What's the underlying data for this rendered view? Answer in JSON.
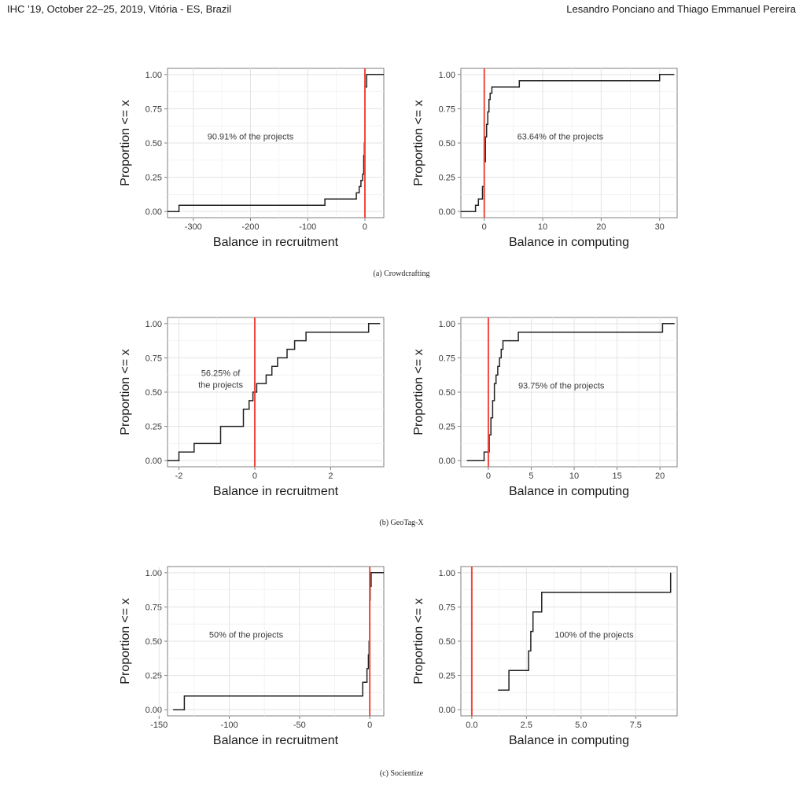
{
  "header": {
    "conference": "IHC ’19, October 22–25, 2019, Vitória - ES, Brazil",
    "authors": "Lesandro Ponciano and Thiago Emmanuel Pereira"
  },
  "captions": [
    "(a) Crowdcrafting",
    "(b) GeoTag-X",
    "(c) Socientize"
  ],
  "chart_data": [
    {
      "type": "line",
      "subfigure": "(a) Crowdcrafting",
      "xlabel": "Balance in recruitment",
      "ylabel": "Proportion <= x",
      "xlim": [
        -345,
        33
      ],
      "ylim": [
        0,
        1
      ],
      "xticks": [
        -300,
        -200,
        -100,
        0
      ],
      "xtick_labels": [
        "-300",
        "-200",
        "-100",
        "0"
      ],
      "yticks": [
        0,
        0.25,
        0.5,
        0.75,
        1
      ],
      "ytick_labels": [
        "0.00",
        "0.25",
        "0.50",
        "0.75",
        "1.00"
      ],
      "reference_line_x": 0,
      "annotation": {
        "lines": [
          "90.91% of the projects"
        ],
        "x": -200,
        "y": 0.55
      },
      "series": [
        {
          "x": [
            -345,
            -325,
            -325,
            -70,
            -70,
            -15,
            -15,
            -10,
            -10,
            -7,
            -7,
            -4,
            -4,
            -2,
            -2,
            -1,
            -1,
            0,
            0,
            3,
            3,
            33
          ],
          "y": [
            0,
            0,
            0.045,
            0.045,
            0.091,
            0.091,
            0.136,
            0.136,
            0.182,
            0.182,
            0.227,
            0.227,
            0.273,
            0.273,
            0.409,
            0.409,
            0.5,
            0.5,
            0.909,
            0.909,
            1,
            1
          ]
        }
      ]
    },
    {
      "type": "line",
      "subfigure": "(a) Crowdcrafting",
      "xlabel": "Balance in computing",
      "ylabel": "Proportion <= x",
      "xlim": [
        -4,
        33
      ],
      "ylim": [
        0,
        1
      ],
      "xticks": [
        0,
        10,
        20,
        30
      ],
      "xtick_labels": [
        "0",
        "10",
        "20",
        "30"
      ],
      "yticks": [
        0,
        0.25,
        0.5,
        0.75,
        1
      ],
      "ytick_labels": [
        "0.00",
        "0.25",
        "0.50",
        "0.75",
        "1.00"
      ],
      "reference_line_x": 0,
      "annotation": {
        "lines": [
          "63.64% of the projects"
        ],
        "x": 13,
        "y": 0.55
      },
      "series": [
        {
          "x": [
            -4,
            -1.5,
            -1.5,
            -1,
            -1,
            -0.3,
            -0.3,
            0,
            0,
            0.2,
            0.2,
            0.4,
            0.4,
            0.6,
            0.6,
            0.8,
            0.8,
            1,
            1,
            1.3,
            1.3,
            6,
            6,
            30,
            30,
            32.5
          ],
          "y": [
            0,
            0,
            0.045,
            0.045,
            0.091,
            0.091,
            0.182,
            0.182,
            0.364,
            0.364,
            0.545,
            0.545,
            0.636,
            0.636,
            0.727,
            0.727,
            0.818,
            0.818,
            0.864,
            0.864,
            0.909,
            0.909,
            0.955,
            0.955,
            1,
            1
          ]
        }
      ]
    },
    {
      "type": "line",
      "subfigure": "(b) GeoTag-X",
      "xlabel": "Balance in recruitment",
      "ylabel": "Proportion <= x",
      "xlim": [
        -2.3,
        3.4
      ],
      "ylim": [
        0,
        1
      ],
      "xticks": [
        -2,
        0,
        2
      ],
      "xtick_labels": [
        "-2",
        "0",
        "2"
      ],
      "yticks": [
        0,
        0.25,
        0.5,
        0.75,
        1
      ],
      "ytick_labels": [
        "0.00",
        "0.25",
        "0.50",
        "0.75",
        "1.00"
      ],
      "reference_line_x": 0,
      "annotation": {
        "lines": [
          "56.25% of",
          "the projects"
        ],
        "x": -0.9,
        "y": 0.6
      },
      "series": [
        {
          "x": [
            -2.3,
            -2,
            -2,
            -1.6,
            -1.6,
            -0.9,
            -0.9,
            -0.3,
            -0.3,
            -0.15,
            -0.15,
            -0.05,
            -0.05,
            0.05,
            0.05,
            0.3,
            0.3,
            0.45,
            0.45,
            0.6,
            0.6,
            0.85,
            0.85,
            1.05,
            1.05,
            1.35,
            1.35,
            3,
            3,
            3.3
          ],
          "y": [
            0,
            0,
            0.0625,
            0.0625,
            0.125,
            0.125,
            0.25,
            0.25,
            0.375,
            0.375,
            0.4375,
            0.4375,
            0.5,
            0.5,
            0.5625,
            0.5625,
            0.625,
            0.625,
            0.6875,
            0.6875,
            0.75,
            0.75,
            0.8125,
            0.8125,
            0.875,
            0.875,
            0.9375,
            0.9375,
            1,
            1
          ]
        }
      ]
    },
    {
      "type": "line",
      "subfigure": "(b) GeoTag-X",
      "xlabel": "Balance in computing",
      "ylabel": "Proportion <= x",
      "xlim": [
        -3.2,
        22
      ],
      "ylim": [
        0,
        1
      ],
      "xticks": [
        0,
        5,
        10,
        15,
        20
      ],
      "xtick_labels": [
        "0",
        "5",
        "10",
        "15",
        "20"
      ],
      "yticks": [
        0,
        0.25,
        0.5,
        0.75,
        1
      ],
      "ytick_labels": [
        "0.00",
        "0.25",
        "0.50",
        "0.75",
        "1.00"
      ],
      "reference_line_x": 0,
      "annotation": {
        "lines": [
          "93.75% of the projects"
        ],
        "x": 8.5,
        "y": 0.55
      },
      "series": [
        {
          "x": [
            -2.5,
            -0.5,
            -0.5,
            0.1,
            0.1,
            0.3,
            0.3,
            0.5,
            0.5,
            0.7,
            0.7,
            0.9,
            0.9,
            1.1,
            1.1,
            1.3,
            1.3,
            1.5,
            1.5,
            1.7,
            1.7,
            2.2,
            2.2,
            3.5,
            3.5,
            20.3,
            20.3,
            21.7
          ],
          "y": [
            0,
            0,
            0.0625,
            0.0625,
            0.1875,
            0.1875,
            0.3125,
            0.3125,
            0.4375,
            0.4375,
            0.5625,
            0.5625,
            0.625,
            0.625,
            0.6875,
            0.6875,
            0.75,
            0.75,
            0.8125,
            0.8125,
            0.875,
            0.875,
            0.875,
            0.875,
            0.9375,
            0.9375,
            1,
            1
          ]
        }
      ]
    },
    {
      "type": "line",
      "subfigure": "(c) Socientize",
      "xlabel": "Balance in recruitment",
      "ylabel": "Proportion <= x",
      "xlim": [
        -144,
        10
      ],
      "ylim": [
        0,
        1
      ],
      "xticks": [
        -150,
        -100,
        -50,
        0
      ],
      "xtick_labels": [
        "-150",
        "-100",
        "-50",
        "0"
      ],
      "yticks": [
        0,
        0.25,
        0.5,
        0.75,
        1
      ],
      "ytick_labels": [
        "0.00",
        "0.25",
        "0.50",
        "0.75",
        "1.00"
      ],
      "reference_line_x": 0,
      "annotation": {
        "lines": [
          "50% of the projects"
        ],
        "x": -88,
        "y": 0.55
      },
      "series": [
        {
          "x": [
            -140,
            -132,
            -132,
            -5,
            -5,
            -2,
            -2,
            -1,
            -1,
            -0.5,
            -0.5,
            0,
            0,
            0.3,
            0.3,
            1,
            1,
            10
          ],
          "y": [
            0,
            0,
            0.1,
            0.1,
            0.2,
            0.2,
            0.3,
            0.3,
            0.4,
            0.4,
            0.5,
            0.5,
            0.8,
            0.8,
            0.9,
            0.9,
            1,
            1
          ]
        }
      ]
    },
    {
      "type": "line",
      "subfigure": "(c) Socientize",
      "xlabel": "Balance in computing",
      "ylabel": "Proportion <= x",
      "xlim": [
        -0.5,
        9.4
      ],
      "ylim": [
        0,
        1
      ],
      "xticks": [
        0,
        2.5,
        5,
        7.5
      ],
      "xtick_labels": [
        "0.0",
        "2.5",
        "5.0",
        "7.5"
      ],
      "yticks": [
        0,
        0.25,
        0.5,
        0.75,
        1
      ],
      "ytick_labels": [
        "0.00",
        "0.25",
        "0.50",
        "0.75",
        "1.00"
      ],
      "reference_line_x": 0,
      "annotation": {
        "lines": [
          "100% of the projects"
        ],
        "x": 5.6,
        "y": 0.55
      },
      "series": [
        {
          "x": [
            1.2,
            1.7,
            1.7,
            2.6,
            2.6,
            2.7,
            2.7,
            2.8,
            2.8,
            3.2,
            3.2,
            9.1,
            9.1
          ],
          "y": [
            0.143,
            0.143,
            0.286,
            0.286,
            0.429,
            0.429,
            0.571,
            0.571,
            0.714,
            0.714,
            0.857,
            0.857,
            1
          ]
        }
      ]
    }
  ]
}
